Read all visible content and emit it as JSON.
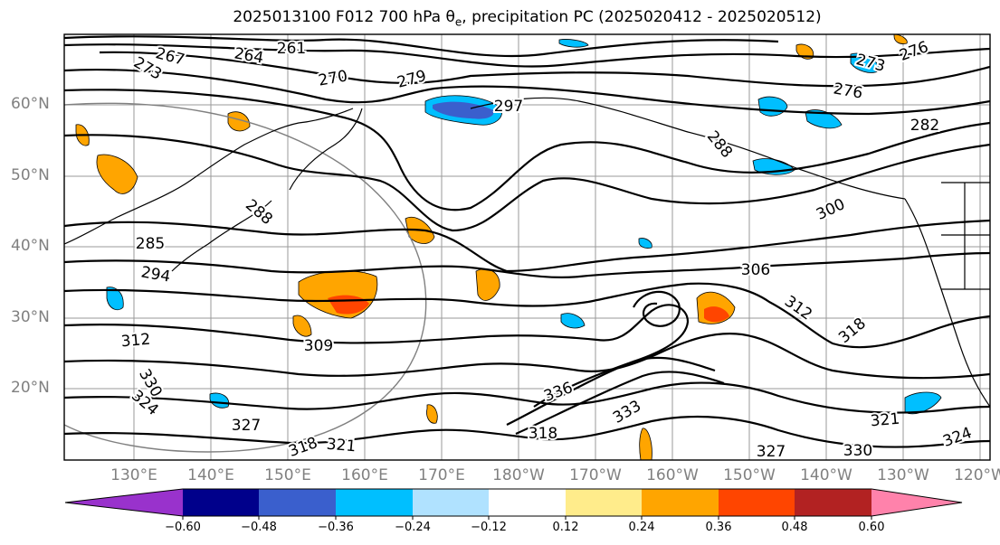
{
  "title": "2025013100 F012 700 hPa θ",
  "title_sub": "e",
  "title_rest": ", precipitation PC (2025020412 - 2025020512)",
  "lat_labels": [
    "60°N",
    "50°N",
    "40°N",
    "30°N",
    "20°N"
  ],
  "lon_labels": [
    "130°E",
    "140°E",
    "150°E",
    "160°E",
    "170°E",
    "180°W",
    "170°W",
    "160°W",
    "150°W",
    "140°W",
    "130°W",
    "120°W"
  ],
  "contour_labels": [
    "261",
    "264",
    "267",
    "270",
    "273",
    "273",
    "276",
    "276",
    "279",
    "282",
    "285",
    "288",
    "288",
    "294",
    "297",
    "300",
    "306",
    "309",
    "312",
    "312",
    "318",
    "318",
    "318",
    "321",
    "321",
    "324",
    "324",
    "327",
    "327",
    "330",
    "330",
    "333",
    "336"
  ],
  "colorbar": {
    "colors": [
      "#9932CC",
      "#00008B",
      "#3A5FCD",
      "#00BFFF",
      "#B0E2FF",
      "#FFFFFF",
      "#FFEC8B",
      "#FFA500",
      "#FF4500",
      "#B22222",
      "#FF82AB"
    ],
    "tick_labels": [
      "−0.60",
      "−0.48",
      "−0.36",
      "−0.24",
      "−0.12",
      "0.12",
      "0.24",
      "0.36",
      "0.48",
      "0.60"
    ]
  }
}
